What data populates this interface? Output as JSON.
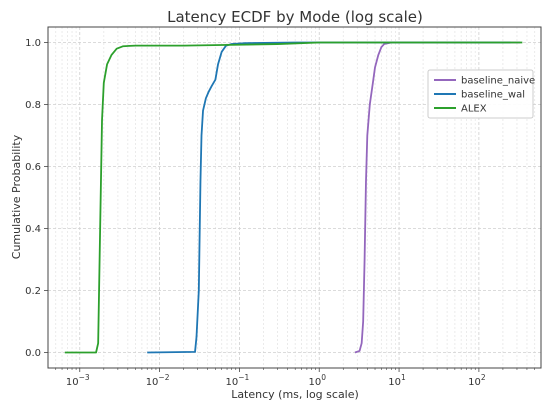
{
  "chart_data": {
    "type": "line",
    "title": "Latency ECDF by Mode (log scale)",
    "xlabel": "Latency (ms, log scale)",
    "ylabel": "Cumulative Probability",
    "x_scale": "log",
    "xlim": [
      0.0004,
      600
    ],
    "ylim": [
      -0.05,
      1.05
    ],
    "x_ticks": [
      0.001,
      0.01,
      0.1,
      1,
      10,
      100
    ],
    "x_tick_labels": [
      {
        "base": "10",
        "exp": "−3"
      },
      {
        "base": "10",
        "exp": "−2"
      },
      {
        "base": "10",
        "exp": "−1"
      },
      {
        "base": "10",
        "exp": "0"
      },
      {
        "base": "10",
        "exp": "1"
      },
      {
        "base": "10",
        "exp": "2"
      }
    ],
    "y_ticks": [
      0.0,
      0.2,
      0.4,
      0.6,
      0.8,
      1.0
    ],
    "y_tick_labels": [
      "0.0",
      "0.2",
      "0.4",
      "0.6",
      "0.8",
      "1.0"
    ],
    "grid": true,
    "legend_position": "right",
    "series": [
      {
        "name": "baseline_naive",
        "color": "#9467bd",
        "points": [
          [
            2.8,
            0.0
          ],
          [
            3.2,
            0.005
          ],
          [
            3.4,
            0.03
          ],
          [
            3.55,
            0.1
          ],
          [
            3.7,
            0.3
          ],
          [
            3.85,
            0.55
          ],
          [
            4.0,
            0.7
          ],
          [
            4.3,
            0.8
          ],
          [
            4.7,
            0.87
          ],
          [
            5.0,
            0.92
          ],
          [
            5.5,
            0.96
          ],
          [
            6.0,
            0.985
          ],
          [
            6.5,
            0.995
          ],
          [
            8.0,
            1.0
          ],
          [
            100.0,
            1.0
          ],
          [
            330.0,
            1.0
          ]
        ]
      },
      {
        "name": "baseline_wal",
        "color": "#1f77b4",
        "points": [
          [
            0.007,
            0.0
          ],
          [
            0.0278,
            0.002
          ],
          [
            0.029,
            0.05
          ],
          [
            0.031,
            0.2
          ],
          [
            0.0325,
            0.55
          ],
          [
            0.0335,
            0.7
          ],
          [
            0.035,
            0.78
          ],
          [
            0.038,
            0.82
          ],
          [
            0.041,
            0.84
          ],
          [
            0.045,
            0.86
          ],
          [
            0.05,
            0.88
          ],
          [
            0.054,
            0.93
          ],
          [
            0.06,
            0.97
          ],
          [
            0.068,
            0.99
          ],
          [
            0.08,
            0.995
          ],
          [
            0.12,
            0.998
          ],
          [
            0.5,
            1.0
          ],
          [
            250.0,
            1.0
          ]
        ]
      },
      {
        "name": "ALEX",
        "color": "#2ca02c",
        "points": [
          [
            0.00065,
            0.0
          ],
          [
            0.0016,
            0.0
          ],
          [
            0.0017,
            0.03
          ],
          [
            0.0018,
            0.4
          ],
          [
            0.0019,
            0.75
          ],
          [
            0.002,
            0.87
          ],
          [
            0.0022,
            0.93
          ],
          [
            0.0025,
            0.96
          ],
          [
            0.0029,
            0.98
          ],
          [
            0.0035,
            0.988
          ],
          [
            0.005,
            0.99
          ],
          [
            0.02,
            0.99
          ],
          [
            0.06,
            0.992
          ],
          [
            0.3,
            0.995
          ],
          [
            1.0,
            1.0
          ],
          [
            350.0,
            1.0
          ]
        ]
      }
    ]
  }
}
